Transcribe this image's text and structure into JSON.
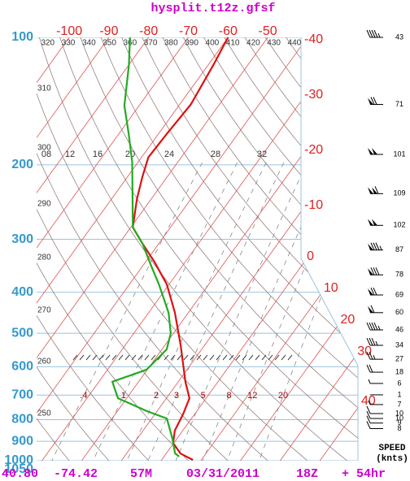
{
  "chart_data": {
    "type": "skewt",
    "title": "hysplit.t12z.gfsf",
    "ylim": [
      1050,
      100
    ],
    "yticks": [
      100,
      200,
      300,
      400,
      500,
      600,
      700,
      800,
      900,
      1000,
      1050
    ],
    "isotherms": [
      -100,
      -90,
      -80,
      -70,
      -60,
      -50,
      -40,
      -30,
      -20,
      -10,
      0,
      10,
      20,
      30,
      40
    ],
    "dry_adiabats": [
      250,
      260,
      270,
      280,
      290,
      300,
      310,
      320,
      330,
      340,
      350,
      360,
      370,
      380,
      390,
      400,
      410,
      420,
      430,
      440
    ],
    "mixing_ratios": [
      {
        "value": 0.4,
        "label": ".4"
      },
      1,
      2,
      3,
      5,
      8,
      12,
      20
    ],
    "moist_adiabat_labels": [
      "08",
      "12",
      "16",
      "20",
      "24",
      "28",
      "32"
    ],
    "series": [
      {
        "color": "#dd1111",
        "pressure": [
          100,
          116,
          144,
          169,
          192,
          214,
          241,
          281,
          307,
          339,
          383,
          447,
          534,
          651,
          712,
          777,
          849,
          908,
          962,
          996
        ],
        "values": [
          -60,
          -58.7,
          -57.2,
          -57.9,
          -58.3,
          -56.2,
          -53.6,
          -49.5,
          -44.1,
          -37.8,
          -30.6,
          -23.4,
          -16,
          -8.2,
          -4.2,
          -2.9,
          -2,
          -0.2,
          3.6,
          7.9
        ]
      },
      {
        "color": "#22aa22",
        "pressure": [
          100,
          116,
          145,
          169,
          197,
          236,
          281,
          307,
          343,
          383,
          447,
          500,
          546,
          610,
          651,
          712,
          764,
          795,
          888,
          961,
          978
        ],
        "values": [
          -84.7,
          -80,
          -73.7,
          -67.5,
          -61.5,
          -55.4,
          -49.5,
          -44.1,
          -38.4,
          -32.6,
          -25,
          -20.7,
          -18.8,
          -20.2,
          -26.6,
          -22.2,
          -12.5,
          -6.2,
          -1.1,
          2.2,
          3.8
        ]
      }
    ],
    "winds": {
      "pressure": [
        100,
        144,
        189,
        234,
        278,
        318,
        364,
        406,
        447,
        491,
        534,
        576,
        618,
        657,
        699,
        737,
        774,
        795,
        815,
        840
      ],
      "speed": [
        43,
        71,
        101,
        109,
        102,
        87,
        78,
        69,
        60,
        46,
        34,
        27,
        18,
        6,
        1,
        7,
        10,
        10,
        9,
        8
      ]
    },
    "speed_label": "SPEED",
    "speed_unit": "(knts)",
    "footer": {
      "lat": "40.80",
      "lon": "-74.42",
      "elevation": "57M",
      "date": "03/31/2011",
      "time": "18Z",
      "forecast": "+ 54hr"
    }
  }
}
